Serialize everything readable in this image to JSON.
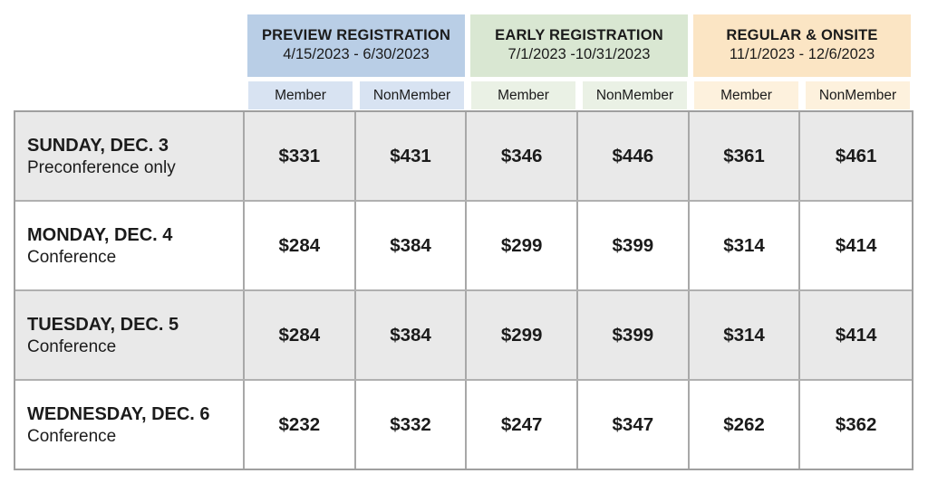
{
  "colors": {
    "blue": "#b9cee6",
    "blue_light": "#d8e3f2",
    "green": "#d9e7d2",
    "green_light": "#eaf1e5",
    "orange": "#fbe5c4",
    "orange_light": "#fdf1dd",
    "row_gray": "#e9e9e9"
  },
  "table": {
    "groups": [
      {
        "title": "PREVIEW REGISTRATION",
        "dates": "4/15/2023 - 6/30/2023"
      },
      {
        "title": "EARLY REGISTRATION",
        "dates": "7/1/2023 -10/31/2023"
      },
      {
        "title": "REGULAR & ONSITE",
        "dates": "11/1/2023 - 12/6/2023"
      }
    ],
    "sub_headers": [
      "Member",
      "NonMember",
      "Member",
      "NonMember",
      "Member",
      "NonMember"
    ],
    "rows": [
      {
        "day": "SUNDAY, DEC. 3",
        "desc": "Preconference only",
        "prices": [
          "$331",
          "$431",
          "$346",
          "$446",
          "$361",
          "$461"
        ]
      },
      {
        "day": "MONDAY, DEC. 4",
        "desc": "Conference",
        "prices": [
          "$284",
          "$384",
          "$299",
          "$399",
          "$314",
          "$414"
        ]
      },
      {
        "day": "TUESDAY, DEC. 5",
        "desc": "Conference",
        "prices": [
          "$284",
          "$384",
          "$299",
          "$399",
          "$314",
          "$414"
        ]
      },
      {
        "day": "WEDNESDAY, DEC. 6",
        "desc": "Conference",
        "prices": [
          "$232",
          "$332",
          "$247",
          "$347",
          "$262",
          "$362"
        ]
      }
    ]
  },
  "chart_data": {
    "type": "table",
    "title": "Conference registration pricing by date",
    "column_groups": [
      {
        "label": "PREVIEW REGISTRATION",
        "dates": "4/15/2023 - 6/30/2023",
        "columns": [
          "Member",
          "NonMember"
        ]
      },
      {
        "label": "EARLY REGISTRATION",
        "dates": "7/1/2023 -10/31/2023",
        "columns": [
          "Member",
          "NonMember"
        ]
      },
      {
        "label": "REGULAR & ONSITE",
        "dates": "11/1/2023 - 12/6/2023",
        "columns": [
          "Member",
          "NonMember"
        ]
      }
    ],
    "categories": [
      "SUNDAY, DEC. 3 (Preconference only)",
      "MONDAY, DEC. 4 (Conference)",
      "TUESDAY, DEC. 5 (Conference)",
      "WEDNESDAY, DEC. 6 (Conference)"
    ],
    "series": [
      {
        "name": "Preview Member",
        "values": [
          331,
          284,
          284,
          232
        ]
      },
      {
        "name": "Preview NonMember",
        "values": [
          431,
          384,
          384,
          332
        ]
      },
      {
        "name": "Early Member",
        "values": [
          346,
          299,
          299,
          247
        ]
      },
      {
        "name": "Early NonMember",
        "values": [
          446,
          399,
          399,
          347
        ]
      },
      {
        "name": "Regular & Onsite Member",
        "values": [
          361,
          314,
          314,
          262
        ]
      },
      {
        "name": "Regular & Onsite NonMember",
        "values": [
          461,
          414,
          414,
          362
        ]
      }
    ],
    "unit": "USD"
  }
}
